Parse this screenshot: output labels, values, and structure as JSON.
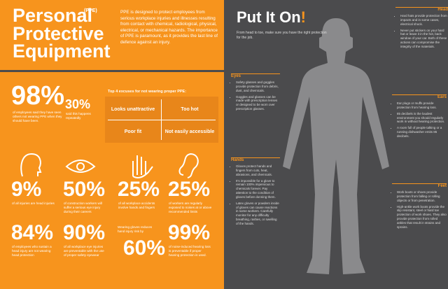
{
  "header": {
    "title": "Personal Protective Equipment",
    "abbr": "(PPE)",
    "intro": "PPE is designed to protect employees from serious workplace injuries and illnesses resulting from contact with chemical, radiological, physical, electrical, or mechanical hazards. The importance of PPE is paramount, as it provides the last line of defence against an injury."
  },
  "top_stats": [
    {
      "value": "98%",
      "text": "of employees said they have seen others not wearing PPE when they should have been."
    },
    {
      "value": "30%",
      "text": "said this happens repeatedly"
    }
  ],
  "excuses": {
    "title": "Top 4 excuses for not wearing proper PPE:",
    "items": [
      "Looks unattractive",
      "Too hot",
      "Poor fit",
      "Not easily accessible"
    ]
  },
  "stats": [
    {
      "value": "9%",
      "text": "of all injuries are head injuries"
    },
    {
      "value": "50%",
      "text": "of construction workers will suffer a serious eye injury during their careers"
    },
    {
      "value": "25%",
      "text": "of all workplace accidents involve hands and fingers"
    },
    {
      "value": "25%",
      "text": "of workers are regularly exposed to noises at or above recommended limits"
    },
    {
      "value": "84%",
      "text": "of employees who sustain a head injury are not wearing head protection"
    },
    {
      "value": "90%",
      "text": "of all workplace eye injuries are preventable with the use of proper safety eyewear"
    },
    {
      "value": "60%",
      "text": "Wearing gloves reduces hand injury risk by"
    },
    {
      "value": "99%",
      "text": "of noise-induced hearing loss is preventable if proper hearing protection is used."
    }
  ],
  "put_on": {
    "title": "Put It On",
    "exclaim": "!",
    "subtitle": "From head to toe, make sure you have the right protection for the job."
  },
  "sections": [
    {
      "title": "Head",
      "bullets": [
        "Hard hats provide protection from impacts and in some cases, electrical shock.",
        "Never put stickers on your hard hat or leave it in the hot, back window of your car. Both of these actions can compromise the integrity of the materials."
      ]
    },
    {
      "title": "Eyes",
      "bullets": [
        "Safety glasses and goggles provide protection from debris, dust, and chemicals.",
        "Goggles and glasses can be made with prescription lenses or designed to be worn over prescription glasses."
      ]
    },
    {
      "title": "Ears",
      "bullets": [
        "Ear plugs or muffs provide protection from hearing loss.",
        "85 decibels is the loudest environment you should regularly work in without hearing protection.",
        "A room full of people talking or a running dishwasher emits 85 decibels."
      ]
    },
    {
      "title": "Hands",
      "bullets": [
        "Gloves protect hands and fingers from cuts, heat, abrasions, and chemicals.",
        "It's impossible for a glove to remain 100% impervious to chemicals forever. Pay attention to the condition of gloves before donning them.",
        "Latex gloves or powders inside of gloves can cause reactions in some workers. Carefully monitor for any difficulty breathing, rashes, or swelling of the hands."
      ]
    },
    {
      "title": "Feet",
      "bullets": [
        "Work boots or shoes provide protection from falling or rolling objects or from penetration.",
        "High-ankle work boots provide the slip resistant, steel or hard toe protection of work shoes. They also provide protection from rolled ankles that result in strains and sprains."
      ]
    }
  ]
}
